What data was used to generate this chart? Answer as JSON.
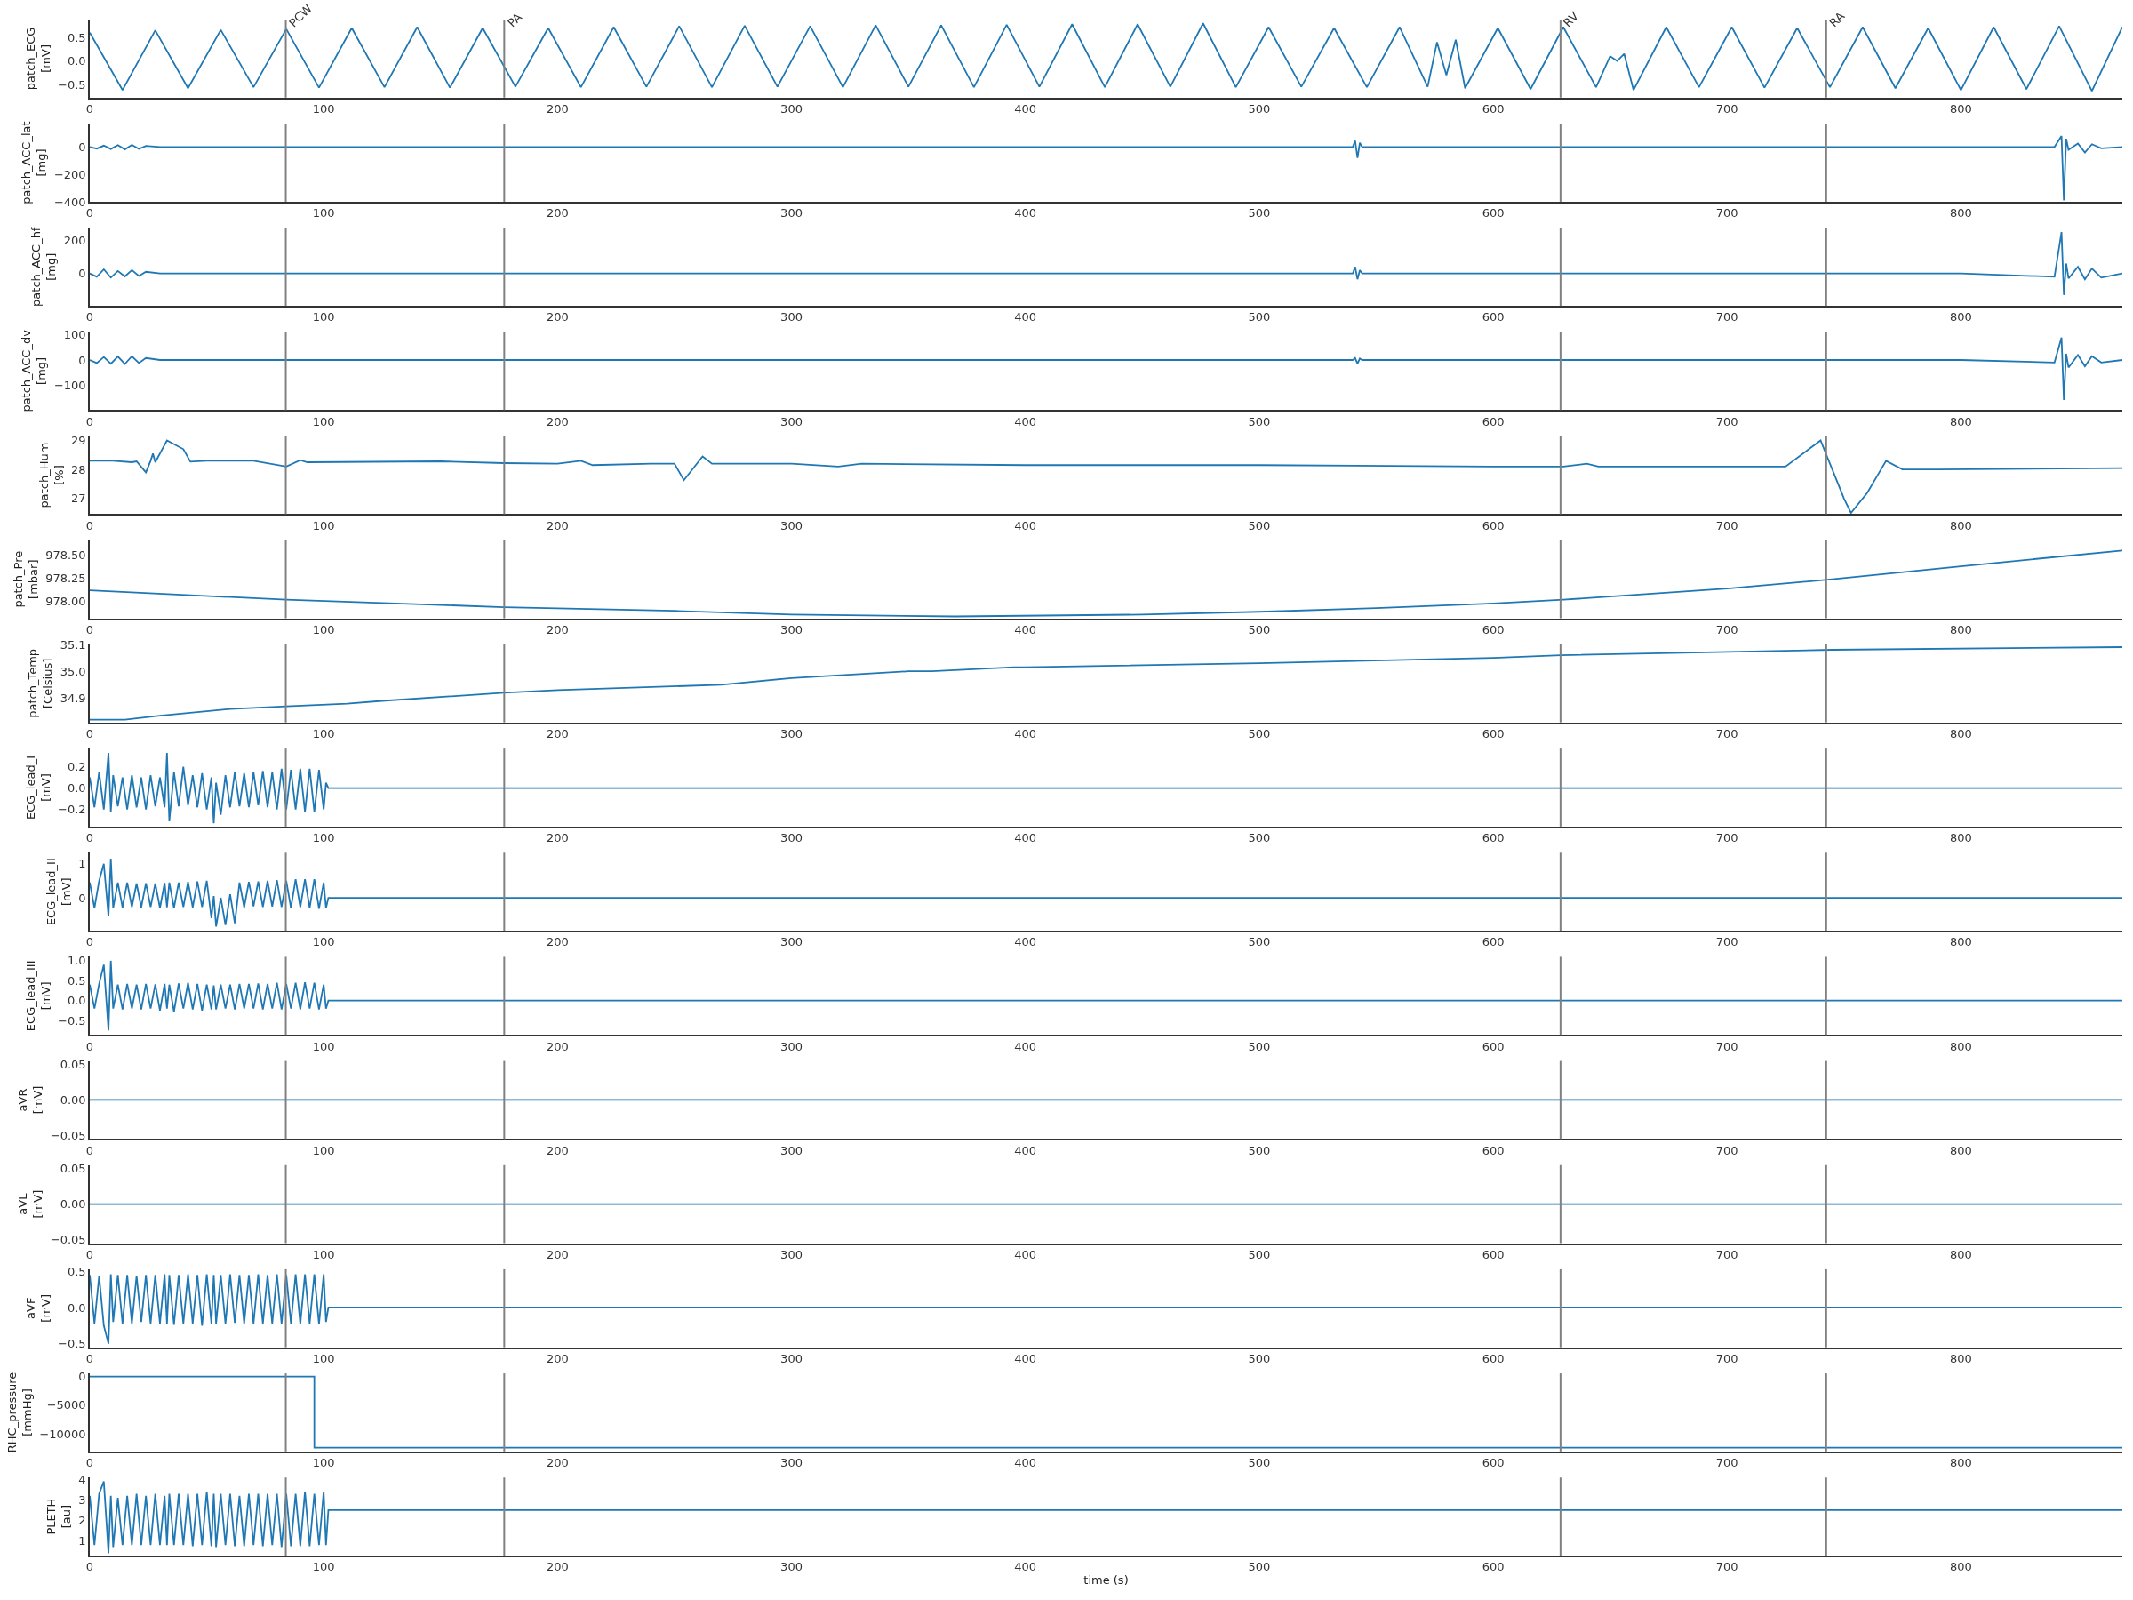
{
  "chart_data": [
    {
      "type": "line",
      "ylabel": "patch_ECG\n[mV]",
      "color": "#1f77b4",
      "x": [
        0,
        14,
        28,
        42,
        56,
        70,
        84,
        98,
        112,
        126,
        140,
        154,
        168,
        182,
        196,
        210,
        224,
        238,
        252,
        266,
        280,
        294,
        308,
        322,
        336,
        350,
        364,
        378,
        392,
        406,
        420,
        434,
        448,
        462,
        476,
        490,
        504,
        518,
        532,
        546,
        560,
        572,
        576,
        580,
        584,
        588,
        602,
        616,
        630,
        644,
        650,
        653,
        656,
        660,
        674,
        688,
        702,
        716,
        730,
        744,
        758,
        772,
        786,
        800,
        814,
        828,
        842,
        856,
        869
      ],
      "values": [
        0.6,
        -0.62,
        0.65,
        -0.58,
        0.66,
        -0.56,
        0.68,
        -0.57,
        0.7,
        -0.56,
        0.72,
        -0.57,
        0.7,
        -0.55,
        0.7,
        -0.56,
        0.72,
        -0.55,
        0.74,
        -0.56,
        0.75,
        -0.55,
        0.74,
        -0.56,
        0.76,
        -0.55,
        0.76,
        -0.56,
        0.77,
        -0.55,
        0.78,
        -0.56,
        0.78,
        -0.55,
        0.8,
        -0.56,
        0.72,
        -0.55,
        0.7,
        -0.56,
        0.72,
        -0.55,
        0.4,
        -0.3,
        0.45,
        -0.58,
        0.7,
        -0.6,
        0.72,
        -0.56,
        0.1,
        0.0,
        0.15,
        -0.62,
        0.72,
        -0.56,
        0.72,
        -0.57,
        0.7,
        -0.56,
        0.72,
        -0.58,
        0.7,
        -0.62,
        0.72,
        -0.6,
        0.74,
        -0.64,
        0.72
      ],
      "xlim": [
        0,
        869
      ],
      "ylim": [
        -0.78,
        0.88
      ],
      "xticks": [
        0,
        100,
        200,
        300,
        400,
        500,
        600,
        700,
        800
      ],
      "yticks": [
        {
          "value": -0.5,
          "label": "−0.5"
        },
        {
          "value": 0,
          "label": "0.0"
        },
        0.5
      ],
      "ref_lines": [
        {
          "axis": "x",
          "value": 83.8,
          "label": "PCW",
          "color": "#808080"
        },
        {
          "axis": "x",
          "value": 177.2,
          "label": "PA",
          "color": "#808080"
        },
        {
          "axis": "x",
          "value": 628.8,
          "label": "RV",
          "color": "#808080"
        },
        {
          "axis": "x",
          "value": 742.4,
          "label": "RA",
          "color": "#808080"
        }
      ]
    },
    {
      "type": "line",
      "ylabel": "patch_ACC_lat\n[mg]",
      "color": "#1f77b4",
      "x": [
        0,
        3,
        6,
        9,
        12,
        15,
        18,
        21,
        24,
        30,
        100,
        200,
        300,
        400,
        500,
        540,
        541,
        542,
        543,
        544,
        550,
        600,
        700,
        745,
        800,
        840,
        843,
        844,
        845,
        846,
        850,
        853,
        856,
        860,
        869
      ],
      "values": [
        0,
        -12,
        10,
        -15,
        14,
        -18,
        15,
        -14,
        8,
        0,
        0,
        0,
        0,
        0,
        0,
        0,
        45,
        -80,
        30,
        0,
        0,
        0,
        0,
        0,
        0,
        0,
        80,
        -390,
        60,
        -20,
        25,
        -40,
        20,
        -10,
        0
      ],
      "xlim": [
        0,
        869
      ],
      "ylim": [
        -400,
        170
      ],
      "xticks": [
        0,
        100,
        200,
        300,
        400,
        500,
        600,
        700,
        800
      ],
      "yticks": [
        {
          "value": -400,
          "label": "−400"
        },
        {
          "value": -200,
          "label": "−200"
        },
        0
      ],
      "ref_lines": [
        {
          "axis": "x",
          "value": 83.8,
          "color": "#808080"
        },
        {
          "axis": "x",
          "value": 177.2,
          "color": "#808080"
        },
        {
          "axis": "x",
          "value": 628.8,
          "color": "#808080"
        },
        {
          "axis": "x",
          "value": 742.4,
          "color": "#808080"
        }
      ]
    },
    {
      "type": "line",
      "ylabel": "patch_ACC_hf\n[mg]",
      "color": "#1f77b4",
      "x": [
        0,
        3,
        6,
        9,
        12,
        15,
        18,
        21,
        24,
        30,
        100,
        200,
        300,
        400,
        500,
        540,
        541,
        542,
        543,
        544,
        550,
        600,
        700,
        745,
        800,
        840,
        843,
        844,
        845,
        846,
        850,
        853,
        856,
        860,
        869
      ],
      "values": [
        0,
        -20,
        25,
        -25,
        15,
        -18,
        20,
        -15,
        10,
        0,
        0,
        0,
        0,
        0,
        0,
        0,
        40,
        -35,
        20,
        0,
        0,
        0,
        0,
        0,
        0,
        -20,
        250,
        -130,
        60,
        -30,
        40,
        -35,
        30,
        -25,
        0
      ],
      "xlim": [
        0,
        869
      ],
      "ylim": [
        -196,
        276
      ],
      "xticks": [
        0,
        100,
        200,
        300,
        400,
        500,
        600,
        700,
        800
      ],
      "yticks": [
        0,
        200
      ],
      "ref_lines": [
        {
          "axis": "x",
          "value": 83.8,
          "color": "#808080"
        },
        {
          "axis": "x",
          "value": 177.2,
          "color": "#808080"
        },
        {
          "axis": "x",
          "value": 628.8,
          "color": "#808080"
        },
        {
          "axis": "x",
          "value": 742.4,
          "color": "#808080"
        }
      ]
    },
    {
      "type": "line",
      "ylabel": "patch_ACC_dv\n[mg]",
      "color": "#1f77b4",
      "x": [
        0,
        3,
        6,
        9,
        12,
        15,
        18,
        21,
        24,
        30,
        100,
        200,
        300,
        400,
        500,
        540,
        541,
        542,
        543,
        544,
        550,
        600,
        700,
        745,
        800,
        840,
        843,
        844,
        845,
        846,
        850,
        853,
        856,
        860,
        869
      ],
      "values": [
        0,
        -12,
        12,
        -15,
        14,
        -16,
        15,
        -12,
        8,
        0,
        0,
        0,
        0,
        0,
        0,
        0,
        8,
        -15,
        6,
        0,
        0,
        0,
        0,
        0,
        0,
        -10,
        90,
        -160,
        25,
        -30,
        20,
        -25,
        15,
        -10,
        0
      ],
      "xlim": [
        0,
        869
      ],
      "ylim": [
        -200,
        112
      ],
      "xticks": [
        0,
        100,
        200,
        300,
        400,
        500,
        600,
        700,
        800
      ],
      "yticks": [
        {
          "value": -100,
          "label": "−100"
        },
        0,
        100
      ],
      "ref_lines": [
        {
          "axis": "x",
          "value": 83.8,
          "color": "#808080"
        },
        {
          "axis": "x",
          "value": 177.2,
          "color": "#808080"
        },
        {
          "axis": "x",
          "value": 628.8,
          "color": "#808080"
        },
        {
          "axis": "x",
          "value": 742.4,
          "color": "#808080"
        }
      ]
    },
    {
      "type": "line",
      "ylabel": "patch_Hum\n[%]",
      "color": "#1f77b4",
      "x": [
        0,
        10,
        18,
        20,
        24,
        26,
        27,
        28,
        33,
        40,
        43,
        50,
        70,
        84,
        90,
        93,
        150,
        177,
        200,
        210,
        215,
        240,
        250,
        254,
        262,
        266,
        300,
        320,
        330,
        400,
        500,
        600,
        630,
        640,
        645,
        700,
        725,
        735,
        740,
        745,
        750,
        753,
        760,
        768,
        775,
        790,
        869
      ],
      "values": [
        28.3,
        28.3,
        28.25,
        28.28,
        27.9,
        28.3,
        28.55,
        28.25,
        29.0,
        28.7,
        28.27,
        28.3,
        28.3,
        28.1,
        28.32,
        28.25,
        28.28,
        28.22,
        28.2,
        28.3,
        28.15,
        28.2,
        28.2,
        27.63,
        28.45,
        28.2,
        28.2,
        28.1,
        28.2,
        28.15,
        28.15,
        28.1,
        28.1,
        28.2,
        28.1,
        28.1,
        28.1,
        28.7,
        29.0,
        28.0,
        27.0,
        26.5,
        27.2,
        28.3,
        28.0,
        28.0,
        28.05
      ],
      "xlim": [
        0,
        869
      ],
      "ylim": [
        26.46,
        29.15
      ],
      "xticks": [
        0,
        100,
        200,
        300,
        400,
        500,
        600,
        700,
        800
      ],
      "yticks": [
        27,
        28,
        29
      ],
      "ref_lines": [
        {
          "axis": "x",
          "value": 83.8,
          "color": "#808080"
        },
        {
          "axis": "x",
          "value": 177.2,
          "color": "#808080"
        },
        {
          "axis": "x",
          "value": 628.8,
          "color": "#808080"
        },
        {
          "axis": "x",
          "value": 742.4,
          "color": "#808080"
        }
      ]
    },
    {
      "type": "line",
      "ylabel": "patch_Pre\n[mbar]",
      "color": "#1f77b4",
      "x": [
        0,
        84,
        177,
        250,
        300,
        370,
        450,
        500,
        550,
        600,
        630,
        700,
        745,
        800,
        869
      ],
      "values": [
        978.12,
        978.02,
        977.94,
        977.9,
        977.86,
        977.84,
        977.86,
        977.89,
        977.93,
        977.98,
        978.02,
        978.14,
        978.24,
        978.38,
        978.55
      ],
      "xlim": [
        0,
        869
      ],
      "ylim": [
        977.82,
        978.66
      ],
      "xticks": [
        0,
        100,
        200,
        300,
        400,
        500,
        600,
        700,
        800
      ],
      "yticks": [
        {
          "value": 978.0,
          "label": "978.00"
        },
        978.25,
        {
          "value": 978.5,
          "label": "978.50"
        }
      ],
      "ref_lines": [
        {
          "axis": "x",
          "value": 83.8,
          "color": "#808080"
        },
        {
          "axis": "x",
          "value": 177.2,
          "color": "#808080"
        },
        {
          "axis": "x",
          "value": 628.8,
          "color": "#808080"
        },
        {
          "axis": "x",
          "value": 742.4,
          "color": "#808080"
        }
      ]
    },
    {
      "type": "line",
      "ylabel": "patch_Temp\n[Celsius]",
      "color": "#1f77b4",
      "x": [
        0,
        15,
        30,
        60,
        84,
        110,
        125,
        177,
        200,
        270,
        300,
        350,
        360,
        395,
        400,
        500,
        600,
        629,
        745,
        869
      ],
      "values": [
        34.82,
        34.82,
        34.835,
        34.86,
        34.87,
        34.88,
        34.89,
        34.92,
        34.93,
        34.95,
        34.975,
        35.0,
        35.0,
        35.015,
        35.015,
        35.03,
        35.05,
        35.06,
        35.08,
        35.09
      ],
      "xlim": [
        0,
        869
      ],
      "ylim": [
        34.81,
        35.1
      ],
      "xticks": [
        0,
        100,
        200,
        300,
        400,
        500,
        600,
        700,
        800
      ],
      "yticks": [
        34.9,
        {
          "value": 35.0,
          "label": "35.0"
        },
        35.1
      ],
      "ref_lines": [
        {
          "axis": "x",
          "value": 83.8,
          "color": "#808080"
        },
        {
          "axis": "x",
          "value": 177.2,
          "color": "#808080"
        },
        {
          "axis": "x",
          "value": 628.8,
          "color": "#808080"
        },
        {
          "axis": "x",
          "value": 742.4,
          "color": "#808080"
        }
      ]
    },
    {
      "type": "line",
      "ylabel": "ECG_lead_I\n[mV]",
      "color": "#1f77b4",
      "x": [
        0,
        2,
        4,
        6,
        8,
        9,
        10,
        12,
        14,
        16,
        18,
        20,
        22,
        24,
        26,
        28,
        30,
        32,
        33,
        34,
        36,
        38,
        40,
        42,
        44,
        46,
        48,
        50,
        52,
        53,
        54,
        56,
        58,
        60,
        62,
        64,
        66,
        68,
        70,
        72,
        74,
        76,
        78,
        80,
        82,
        84,
        86,
        88,
        90,
        92,
        94,
        96,
        98,
        100,
        101,
        102,
        869
      ],
      "values": [
        0.1,
        -0.18,
        0.15,
        -0.2,
        0.33,
        -0.22,
        0.12,
        -0.17,
        0.1,
        -0.2,
        0.12,
        -0.18,
        0.1,
        -0.2,
        0.12,
        -0.17,
        0.1,
        -0.18,
        0.33,
        -0.31,
        0.15,
        -0.17,
        0.2,
        -0.16,
        0.12,
        -0.18,
        0.14,
        -0.2,
        0.1,
        -0.33,
        0.05,
        -0.25,
        0.12,
        -0.18,
        0.15,
        -0.17,
        0.14,
        -0.18,
        0.15,
        -0.16,
        0.16,
        -0.18,
        0.15,
        -0.2,
        0.18,
        -0.2,
        0.17,
        -0.2,
        0.18,
        -0.22,
        0.18,
        -0.22,
        0.17,
        -0.2,
        0.05,
        0,
        0
      ],
      "xlim": [
        0,
        869
      ],
      "ylim": [
        -0.36,
        0.37
      ],
      "xticks": [
        0,
        100,
        200,
        300,
        400,
        500,
        600,
        700,
        800
      ],
      "yticks": [
        {
          "value": -0.2,
          "label": "−0.2"
        },
        {
          "value": 0,
          "label": "0.0"
        },
        0.2
      ],
      "ref_lines": [
        {
          "axis": "x",
          "value": 83.8,
          "color": "#808080"
        },
        {
          "axis": "x",
          "value": 177.2,
          "color": "#808080"
        },
        {
          "axis": "x",
          "value": 628.8,
          "color": "#808080"
        },
        {
          "axis": "x",
          "value": 742.4,
          "color": "#808080"
        }
      ]
    },
    {
      "type": "line",
      "ylabel": "ECG_lead_II\n[mV]",
      "color": "#1f77b4",
      "x": [
        0,
        2,
        4,
        6,
        8,
        9,
        10,
        12,
        14,
        16,
        18,
        20,
        22,
        24,
        26,
        28,
        30,
        32,
        33,
        34,
        36,
        38,
        40,
        42,
        44,
        46,
        48,
        50,
        52,
        53,
        54,
        56,
        58,
        60,
        62,
        64,
        66,
        68,
        70,
        72,
        74,
        76,
        78,
        80,
        82,
        84,
        86,
        88,
        90,
        92,
        94,
        96,
        98,
        100,
        101,
        102,
        869
      ],
      "values": [
        0.45,
        -0.3,
        0.5,
        1.0,
        -0.55,
        1.15,
        -0.3,
        0.45,
        -0.28,
        0.45,
        -0.27,
        0.42,
        -0.28,
        0.43,
        -0.27,
        0.42,
        -0.3,
        0.44,
        -0.28,
        0.45,
        -0.3,
        0.45,
        -0.27,
        0.47,
        -0.28,
        0.48,
        -0.27,
        0.5,
        -0.6,
        0.05,
        -0.85,
        0.0,
        -0.8,
        0.1,
        -0.75,
        0.45,
        -0.28,
        0.47,
        -0.25,
        0.48,
        -0.27,
        0.5,
        -0.26,
        0.52,
        -0.27,
        0.5,
        -0.3,
        0.55,
        -0.28,
        0.55,
        -0.3,
        0.55,
        -0.32,
        0.45,
        -0.3,
        0,
        0
      ],
      "xlim": [
        0,
        869
      ],
      "ylim": [
        -0.97,
        1.33
      ],
      "xticks": [
        0,
        100,
        200,
        300,
        400,
        500,
        600,
        700,
        800
      ],
      "yticks": [
        0,
        1
      ],
      "ref_lines": [
        {
          "axis": "x",
          "value": 83.8,
          "color": "#808080"
        },
        {
          "axis": "x",
          "value": 177.2,
          "color": "#808080"
        },
        {
          "axis": "x",
          "value": 628.8,
          "color": "#808080"
        },
        {
          "axis": "x",
          "value": 742.4,
          "color": "#808080"
        }
      ]
    },
    {
      "type": "line",
      "ylabel": "ECG_lead_III\n[mV]",
      "color": "#1f77b4",
      "x": [
        0,
        2,
        4,
        6,
        8,
        9,
        10,
        12,
        14,
        16,
        18,
        20,
        22,
        24,
        26,
        28,
        30,
        32,
        33,
        34,
        36,
        38,
        40,
        42,
        44,
        46,
        48,
        50,
        52,
        53,
        54,
        56,
        58,
        60,
        62,
        64,
        66,
        68,
        70,
        72,
        74,
        76,
        78,
        80,
        82,
        84,
        86,
        88,
        90,
        92,
        94,
        96,
        98,
        100,
        101,
        102,
        869
      ],
      "values": [
        0.4,
        -0.2,
        0.42,
        0.9,
        -0.75,
        1.0,
        -0.2,
        0.4,
        -0.22,
        0.42,
        -0.2,
        0.4,
        -0.22,
        0.42,
        -0.2,
        0.41,
        -0.25,
        0.42,
        -0.2,
        0.4,
        -0.28,
        0.43,
        -0.2,
        0.45,
        -0.22,
        0.42,
        -0.25,
        0.4,
        -0.22,
        0.38,
        -0.22,
        0.4,
        -0.2,
        0.4,
        -0.22,
        0.42,
        -0.2,
        0.42,
        -0.2,
        0.43,
        -0.22,
        0.42,
        -0.2,
        0.45,
        -0.22,
        0.42,
        -0.2,
        0.45,
        -0.22,
        0.46,
        -0.2,
        0.45,
        -0.22,
        0.4,
        -0.2,
        0,
        0
      ],
      "xlim": [
        0,
        869
      ],
      "ylim": [
        -0.86,
        1.1
      ],
      "xticks": [
        0,
        100,
        200,
        300,
        400,
        500,
        600,
        700,
        800
      ],
      "yticks": [
        {
          "value": -0.5,
          "label": "−0.5"
        },
        {
          "value": 0,
          "label": "0.0"
        },
        0.5,
        {
          "value": 1,
          "label": "1.0"
        }
      ],
      "ref_lines": [
        {
          "axis": "x",
          "value": 83.8,
          "color": "#808080"
        },
        {
          "axis": "x",
          "value": 177.2,
          "color": "#808080"
        },
        {
          "axis": "x",
          "value": 628.8,
          "color": "#808080"
        },
        {
          "axis": "x",
          "value": 742.4,
          "color": "#808080"
        }
      ]
    },
    {
      "type": "line",
      "ylabel": "aVR\n[mV]",
      "color": "#1f77b4",
      "x": [
        0,
        869
      ],
      "values": [
        0,
        0
      ],
      "xlim": [
        0,
        869
      ],
      "ylim": [
        -0.055,
        0.055
      ],
      "xticks": [
        0,
        100,
        200,
        300,
        400,
        500,
        600,
        700,
        800
      ],
      "yticks": [
        {
          "value": -0.05,
          "label": "−0.05"
        },
        {
          "value": 0,
          "label": "0.00"
        },
        0.05
      ],
      "ref_lines": [
        {
          "axis": "x",
          "value": 83.8,
          "color": "#808080"
        },
        {
          "axis": "x",
          "value": 177.2,
          "color": "#808080"
        },
        {
          "axis": "x",
          "value": 628.8,
          "color": "#808080"
        },
        {
          "axis": "x",
          "value": 742.4,
          "color": "#808080"
        }
      ]
    },
    {
      "type": "line",
      "ylabel": "aVL\n[mV]",
      "color": "#1f77b4",
      "x": [
        0,
        869
      ],
      "values": [
        0,
        0
      ],
      "xlim": [
        0,
        869
      ],
      "ylim": [
        -0.055,
        0.055
      ],
      "xticks": [
        0,
        100,
        200,
        300,
        400,
        500,
        600,
        700,
        800
      ],
      "yticks": [
        {
          "value": -0.05,
          "label": "−0.05"
        },
        {
          "value": 0,
          "label": "0.00"
        },
        0.05
      ],
      "ref_lines": [
        {
          "axis": "x",
          "value": 83.8,
          "color": "#808080"
        },
        {
          "axis": "x",
          "value": 177.2,
          "color": "#808080"
        },
        {
          "axis": "x",
          "value": 628.8,
          "color": "#808080"
        },
        {
          "axis": "x",
          "value": 742.4,
          "color": "#808080"
        }
      ]
    },
    {
      "type": "line",
      "ylabel": "aVF\n[mV]",
      "color": "#1f77b4",
      "x": [
        0,
        2,
        4,
        6,
        8,
        9,
        10,
        12,
        14,
        16,
        18,
        20,
        22,
        24,
        26,
        28,
        30,
        32,
        33,
        34,
        36,
        38,
        40,
        42,
        44,
        46,
        48,
        50,
        52,
        53,
        54,
        56,
        58,
        60,
        62,
        64,
        66,
        68,
        70,
        72,
        74,
        76,
        78,
        80,
        82,
        84,
        86,
        88,
        90,
        92,
        94,
        96,
        98,
        100,
        101,
        102,
        869
      ],
      "values": [
        0.45,
        -0.22,
        0.44,
        -0.25,
        -0.5,
        0.46,
        -0.2,
        0.45,
        -0.22,
        0.45,
        -0.22,
        0.44,
        -0.2,
        0.45,
        -0.22,
        0.45,
        -0.22,
        0.46,
        -0.22,
        0.45,
        -0.24,
        0.45,
        -0.22,
        0.46,
        -0.22,
        0.45,
        -0.25,
        0.46,
        -0.22,
        0.45,
        -0.22,
        0.45,
        -0.22,
        0.46,
        -0.21,
        0.45,
        -0.22,
        0.45,
        -0.22,
        0.46,
        -0.22,
        0.45,
        -0.22,
        0.46,
        -0.22,
        0.45,
        -0.22,
        0.46,
        -0.23,
        0.46,
        -0.22,
        0.46,
        -0.23,
        0.46,
        -0.2,
        0,
        0
      ],
      "xlim": [
        0,
        869
      ],
      "ylim": [
        -0.55,
        0.53
      ],
      "xticks": [
        0,
        100,
        200,
        300,
        400,
        500,
        600,
        700,
        800
      ],
      "yticks": [
        {
          "value": -0.5,
          "label": "−0.5"
        },
        {
          "value": 0,
          "label": "0.0"
        },
        0.5
      ],
      "ref_lines": [
        {
          "axis": "x",
          "value": 83.8,
          "color": "#808080"
        },
        {
          "axis": "x",
          "value": 177.2,
          "color": "#808080"
        },
        {
          "axis": "x",
          "value": 628.8,
          "color": "#808080"
        },
        {
          "axis": "x",
          "value": 742.4,
          "color": "#808080"
        }
      ]
    },
    {
      "type": "line",
      "ylabel": "RHC_pressure\n[mmHg]",
      "color": "#1f77b4",
      "x": [
        0,
        96,
        96,
        869
      ],
      "values": [
        0,
        0,
        -12400,
        -12400
      ],
      "xlim": [
        0,
        869
      ],
      "ylim": [
        -13050,
        550
      ],
      "xticks": [
        0,
        100,
        200,
        300,
        400,
        500,
        600,
        700,
        800
      ],
      "yticks": [
        {
          "value": -10000,
          "label": "−10000"
        },
        {
          "value": -5000,
          "label": "−5000"
        },
        0
      ],
      "ref_lines": [
        {
          "axis": "x",
          "value": 83.8,
          "color": "#808080"
        },
        {
          "axis": "x",
          "value": 177.2,
          "color": "#808080"
        },
        {
          "axis": "x",
          "value": 628.8,
          "color": "#808080"
        },
        {
          "axis": "x",
          "value": 742.4,
          "color": "#808080"
        }
      ]
    },
    {
      "type": "line",
      "ylabel": "PLETH\n[au]",
      "xlabel": "time (s)",
      "color": "#1f77b4",
      "x": [
        0,
        2,
        4,
        6,
        8,
        9,
        10,
        12,
        14,
        16,
        18,
        20,
        22,
        24,
        26,
        28,
        30,
        32,
        33,
        34,
        36,
        38,
        40,
        42,
        44,
        46,
        48,
        50,
        52,
        53,
        54,
        56,
        58,
        60,
        62,
        64,
        66,
        68,
        70,
        72,
        74,
        76,
        78,
        80,
        82,
        84,
        86,
        88,
        90,
        92,
        94,
        96,
        98,
        100,
        101,
        102,
        869
      ],
      "values": [
        3.2,
        0.8,
        3.3,
        3.9,
        0.4,
        3.2,
        0.7,
        3.1,
        0.8,
        3.2,
        0.8,
        3.3,
        0.8,
        3.2,
        0.8,
        3.3,
        0.8,
        3.2,
        0.8,
        3.3,
        0.8,
        3.3,
        0.8,
        3.3,
        0.75,
        3.3,
        0.8,
        3.4,
        0.75,
        3.3,
        0.7,
        3.3,
        0.8,
        3.3,
        0.75,
        3.2,
        0.75,
        3.3,
        0.8,
        3.3,
        0.75,
        3.3,
        0.8,
        3.3,
        0.7,
        3.3,
        0.75,
        3.3,
        0.75,
        3.4,
        0.75,
        3.3,
        0.8,
        3.4,
        0.8,
        2.5,
        2.5
      ],
      "xlim": [
        0,
        869
      ],
      "ylim": [
        0.29,
        4.09
      ],
      "xticks": [
        0,
        100,
        200,
        300,
        400,
        500,
        600,
        700,
        800
      ],
      "yticks": [
        1,
        2,
        3,
        4
      ],
      "ref_lines": [
        {
          "axis": "x",
          "value": 83.8,
          "color": "#808080"
        },
        {
          "axis": "x",
          "value": 177.2,
          "color": "#808080"
        },
        {
          "axis": "x",
          "value": 628.8,
          "color": "#808080"
        },
        {
          "axis": "x",
          "value": 742.4,
          "color": "#808080"
        }
      ]
    }
  ]
}
